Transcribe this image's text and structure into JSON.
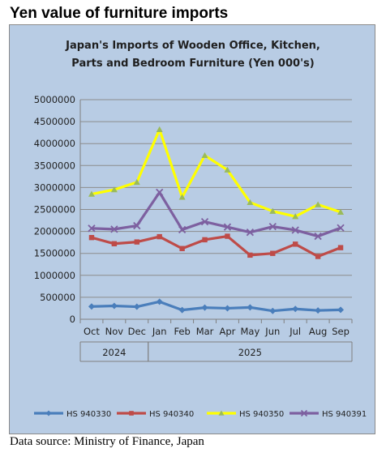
{
  "page_title": "Yen value of furniture imports",
  "source": "Data source: Ministry of Finance, Japan",
  "chart_data": {
    "type": "line",
    "title_lines": [
      "Japan's Imports of  Wooden  Office, Kitchen,",
      "Parts and Bedroom Furniture (Yen 000's)"
    ],
    "categories": [
      "Oct",
      "Nov",
      "Dec",
      "Jan",
      "Feb",
      "Mar",
      "Apr",
      "May",
      "Jun",
      "Jul",
      "Aug",
      "Sep"
    ],
    "year_groups": [
      {
        "label": "2024",
        "start": 0,
        "end": 2
      },
      {
        "label": "2025",
        "start": 3,
        "end": 11
      }
    ],
    "ylim": [
      0,
      5000000
    ],
    "yticks": [
      "0",
      "500000",
      "1000000",
      "1500000",
      "2000000",
      "2500000",
      "3000000",
      "3500000",
      "4000000",
      "4500000",
      "5000000"
    ],
    "grid": true,
    "legend_position": "bottom",
    "series": [
      {
        "name": "HS 940330",
        "color": "#4a7ebb",
        "marker": "diamond",
        "values": [
          290000,
          305000,
          285000,
          400000,
          210000,
          265000,
          250000,
          270000,
          190000,
          235000,
          200000,
          215000
        ]
      },
      {
        "name": "HS 940340",
        "color": "#be4b48",
        "marker": "square",
        "values": [
          1860000,
          1720000,
          1760000,
          1880000,
          1610000,
          1810000,
          1890000,
          1460000,
          1500000,
          1710000,
          1430000,
          1630000
        ]
      },
      {
        "name": "HS 940350",
        "color": "#ffff00",
        "marker": "triangle",
        "values": [
          2850000,
          2950000,
          3120000,
          4320000,
          2780000,
          3730000,
          3400000,
          2660000,
          2460000,
          2340000,
          2610000,
          2440000
        ]
      },
      {
        "name": "HS 940391",
        "color": "#7d60a0",
        "marker": "cross",
        "values": [
          2070000,
          2050000,
          2130000,
          2890000,
          2040000,
          2220000,
          2100000,
          1980000,
          2110000,
          2030000,
          1890000,
          2080000
        ]
      }
    ]
  }
}
